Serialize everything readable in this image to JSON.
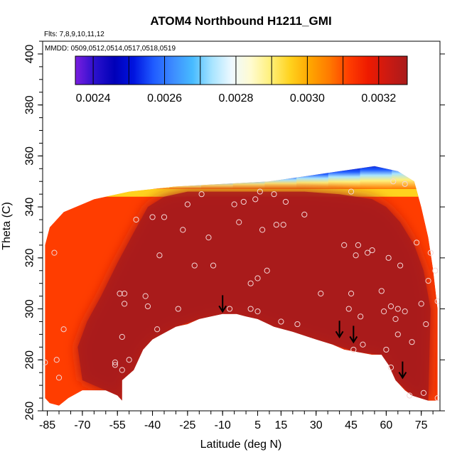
{
  "chart_data": {
    "type": "heatmap",
    "title": "ATOM4 Northbound H1211_GMI",
    "subtitle_flights": "Flts: 7,8,9,10,11,12",
    "subtitle_dates": "MMDD: 0509,0512,0514,0517,0518,0519",
    "xlabel": "Latitude (deg N)",
    "ylabel": "Theta (C)",
    "xlim": [
      -87,
      83
    ],
    "ylim": [
      260,
      405
    ],
    "x_ticks": [
      -85,
      -70,
      -55,
      -40,
      -25,
      -10,
      5,
      15,
      30,
      45,
      60,
      75
    ],
    "y_ticks": [
      260,
      280,
      300,
      320,
      340,
      360,
      380,
      400
    ],
    "colorbar": {
      "range": [
        0.00235,
        0.00328
      ],
      "tick_values": [
        0.0024,
        0.0026,
        0.0028,
        0.003,
        0.0032
      ],
      "tick_labels": [
        "0.0024",
        "0.0026",
        "0.0028",
        "0.0030",
        "0.0032"
      ],
      "colors": [
        "#7a1ee0",
        "#2a10cc",
        "#0000b8",
        "#0014e0",
        "#1f5bff",
        "#3d8cff",
        "#47bbff",
        "#a8e4ff",
        "#eef9ff",
        "#fffbd0",
        "#fff07a",
        "#ffd21e",
        "#ffa600",
        "#ff7a00",
        "#ff3d00",
        "#ee1a00",
        "#cc1a12",
        "#a91b1b"
      ]
    },
    "field_outline": [
      [
        -86,
        265
      ],
      [
        -84,
        263
      ],
      [
        -80,
        262
      ],
      [
        -76,
        265
      ],
      [
        -70,
        268
      ],
      [
        -65,
        268
      ],
      [
        -60,
        268
      ],
      [
        -55,
        266
      ],
      [
        -53,
        264
      ],
      [
        -53,
        272
      ],
      [
        -48,
        276
      ],
      [
        -44,
        284
      ],
      [
        -40,
        288
      ],
      [
        -36,
        290
      ],
      [
        -30,
        293
      ],
      [
        -25,
        294
      ],
      [
        -20,
        296
      ],
      [
        -15,
        297
      ],
      [
        -10,
        298
      ],
      [
        -4,
        298
      ],
      [
        0,
        297
      ],
      [
        5,
        296
      ],
      [
        12,
        293
      ],
      [
        20,
        291
      ],
      [
        30,
        288
      ],
      [
        37,
        286
      ],
      [
        42,
        284
      ],
      [
        48,
        283
      ],
      [
        54,
        282
      ],
      [
        58,
        282
      ],
      [
        61,
        278
      ],
      [
        64,
        272
      ],
      [
        68,
        268
      ],
      [
        71,
        266
      ],
      [
        78,
        264
      ],
      [
        82,
        264
      ],
      [
        82,
        300
      ],
      [
        80,
        316
      ],
      [
        78,
        328
      ],
      [
        75,
        340
      ],
      [
        72,
        350
      ],
      [
        65,
        354
      ],
      [
        55,
        356
      ],
      [
        40,
        354
      ],
      [
        25,
        352
      ],
      [
        10,
        350
      ],
      [
        -10,
        349
      ],
      [
        -30,
        348
      ],
      [
        -50,
        346
      ],
      [
        -65,
        343
      ],
      [
        -78,
        338
      ],
      [
        -84,
        332
      ],
      [
        -86,
        325
      ]
    ],
    "core_region": [
      [
        -60,
        268
      ],
      [
        -55,
        266
      ],
      [
        -53,
        264
      ],
      [
        -53,
        272
      ],
      [
        -48,
        276
      ],
      [
        -44,
        284
      ],
      [
        -40,
        288
      ],
      [
        -30,
        293
      ],
      [
        -20,
        296
      ],
      [
        -10,
        298
      ],
      [
        0,
        297
      ],
      [
        12,
        293
      ],
      [
        30,
        288
      ],
      [
        48,
        283
      ],
      [
        58,
        282
      ],
      [
        64,
        272
      ],
      [
        71,
        266
      ],
      [
        78,
        264
      ],
      [
        79,
        300
      ],
      [
        76,
        315
      ],
      [
        72,
        325
      ],
      [
        66,
        334
      ],
      [
        60,
        340
      ],
      [
        54,
        343
      ],
      [
        40,
        345
      ],
      [
        25,
        346
      ],
      [
        5,
        346
      ],
      [
        -10,
        346
      ],
      [
        -25,
        346
      ],
      [
        -35,
        344
      ],
      [
        -42,
        340
      ],
      [
        -48,
        330
      ],
      [
        -55,
        318
      ],
      [
        -62,
        305
      ],
      [
        -68,
        295
      ],
      [
        -72,
        285
      ],
      [
        -70,
        272
      ]
    ],
    "high_altitude_band": {
      "theta_bottom": 347,
      "theta_top": 359,
      "lat_start": -60,
      "lat_end": 76
    },
    "observations": [
      {
        "lat": -86,
        "theta": 279
      },
      {
        "lat": -82,
        "theta": 322
      },
      {
        "lat": -81,
        "theta": 280
      },
      {
        "lat": -80,
        "theta": 273
      },
      {
        "lat": -78,
        "theta": 292
      },
      {
        "lat": -56,
        "theta": 279
      },
      {
        "lat": -56,
        "theta": 278
      },
      {
        "lat": -54,
        "theta": 306
      },
      {
        "lat": -53,
        "theta": 289
      },
      {
        "lat": -53,
        "theta": 276
      },
      {
        "lat": -52,
        "theta": 302
      },
      {
        "lat": -52,
        "theta": 306
      },
      {
        "lat": -50,
        "theta": 280
      },
      {
        "lat": -47,
        "theta": 335
      },
      {
        "lat": -43,
        "theta": 305
      },
      {
        "lat": -42,
        "theta": 301
      },
      {
        "lat": -40,
        "theta": 336
      },
      {
        "lat": -38,
        "theta": 292
      },
      {
        "lat": -37,
        "theta": 321
      },
      {
        "lat": -35,
        "theta": 336
      },
      {
        "lat": -29,
        "theta": 300
      },
      {
        "lat": -27,
        "theta": 331
      },
      {
        "lat": -25,
        "theta": 341
      },
      {
        "lat": -22,
        "theta": 317
      },
      {
        "lat": -19,
        "theta": 345
      },
      {
        "lat": -16,
        "theta": 328
      },
      {
        "lat": -14,
        "theta": 317
      },
      {
        "lat": -7,
        "theta": 300
      },
      {
        "lat": -5,
        "theta": 341
      },
      {
        "lat": -3,
        "theta": 334
      },
      {
        "lat": -1,
        "theta": 342
      },
      {
        "lat": 2,
        "theta": 300
      },
      {
        "lat": 2,
        "theta": 310
      },
      {
        "lat": 4,
        "theta": 343
      },
      {
        "lat": 5,
        "theta": 299
      },
      {
        "lat": 5,
        "theta": 312
      },
      {
        "lat": 6,
        "theta": 346
      },
      {
        "lat": 7,
        "theta": 331
      },
      {
        "lat": 9,
        "theta": 315
      },
      {
        "lat": 12,
        "theta": 345
      },
      {
        "lat": 13,
        "theta": 333
      },
      {
        "lat": 15,
        "theta": 295
      },
      {
        "lat": 16,
        "theta": 333
      },
      {
        "lat": 17,
        "theta": 342
      },
      {
        "lat": 22,
        "theta": 294
      },
      {
        "lat": 25,
        "theta": 337
      },
      {
        "lat": 32,
        "theta": 306
      },
      {
        "lat": 42,
        "theta": 325
      },
      {
        "lat": 44,
        "theta": 300
      },
      {
        "lat": 45,
        "theta": 306
      },
      {
        "lat": 45,
        "theta": 346
      },
      {
        "lat": 46,
        "theta": 284
      },
      {
        "lat": 47,
        "theta": 321
      },
      {
        "lat": 48,
        "theta": 325
      },
      {
        "lat": 49,
        "theta": 297
      },
      {
        "lat": 50,
        "theta": 286
      },
      {
        "lat": 52,
        "theta": 322
      },
      {
        "lat": 54,
        "theta": 323
      },
      {
        "lat": 58,
        "theta": 307
      },
      {
        "lat": 59,
        "theta": 299
      },
      {
        "lat": 60,
        "theta": 284
      },
      {
        "lat": 61,
        "theta": 320
      },
      {
        "lat": 62,
        "theta": 277
      },
      {
        "lat": 62,
        "theta": 301
      },
      {
        "lat": 63,
        "theta": 350
      },
      {
        "lat": 64,
        "theta": 296
      },
      {
        "lat": 65,
        "theta": 290
      },
      {
        "lat": 65,
        "theta": 300
      },
      {
        "lat": 66,
        "theta": 317
      },
      {
        "lat": 68,
        "theta": 299
      },
      {
        "lat": 68,
        "theta": 349
      },
      {
        "lat": 70,
        "theta": 266
      },
      {
        "lat": 71,
        "theta": 287
      },
      {
        "lat": 73,
        "theta": 326
      },
      {
        "lat": 75,
        "theta": 302
      },
      {
        "lat": 76,
        "theta": 267
      },
      {
        "lat": 77,
        "theta": 294
      },
      {
        "lat": 78,
        "theta": 311
      },
      {
        "lat": 79,
        "theta": 322
      },
      {
        "lat": 81,
        "theta": 315
      },
      {
        "lat": 82,
        "theta": 303
      },
      {
        "lat": 82,
        "theta": 265
      }
    ],
    "arrows": [
      {
        "lat": -10,
        "theta": 302
      },
      {
        "lat": 40,
        "theta": 292
      },
      {
        "lat": 46,
        "theta": 290
      },
      {
        "lat": 67,
        "theta": 276
      }
    ]
  }
}
